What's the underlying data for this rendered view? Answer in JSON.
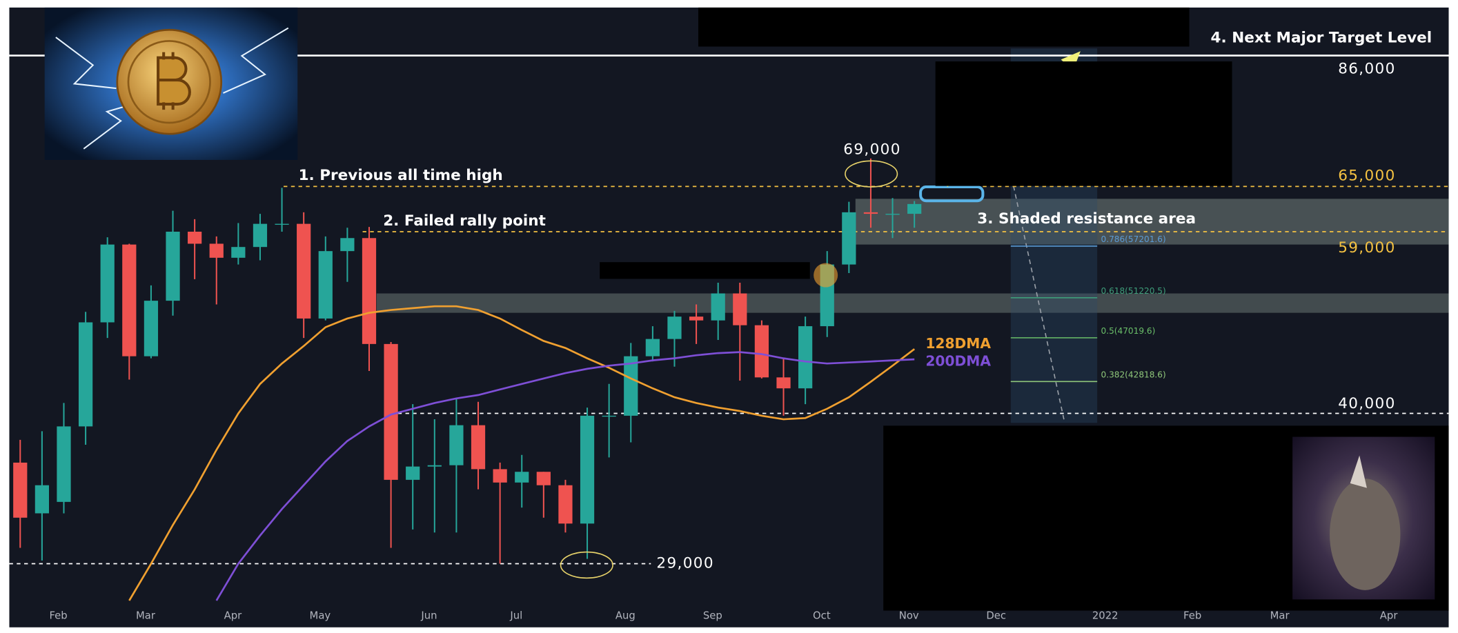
{
  "chart_data": {
    "type": "candlestick",
    "log_scale": true,
    "ylim": [
      26600,
      95300
    ],
    "yticks": [
      {
        "value": 86000,
        "label": "86,000",
        "color": "#ffffff"
      },
      {
        "value": 65000,
        "label": "65,000",
        "color": "#f5c242"
      },
      {
        "value": 59000,
        "label": "59,000",
        "color": "#f5c242"
      },
      {
        "value": 40000,
        "label": "40,000",
        "color": "#ffffff"
      },
      {
        "value": 29000,
        "label": "29,000",
        "color": "#ffffff"
      }
    ],
    "categories": [
      null,
      null,
      "Feb",
      null,
      null,
      null,
      "Mar",
      null,
      null,
      null,
      "Apr",
      null,
      null,
      null,
      "May",
      null,
      null,
      null,
      null,
      "Jun",
      null,
      null,
      null,
      "Jul",
      null,
      null,
      null,
      null,
      "Aug",
      null,
      null,
      null,
      "Sep",
      null,
      null,
      null,
      null,
      "Oct",
      null,
      null,
      null,
      "Nov",
      null,
      null,
      null,
      "Dec",
      null,
      null,
      null,
      null,
      "2022",
      null,
      null,
      null,
      "Feb",
      null,
      null,
      null,
      "Mar",
      null,
      null,
      null,
      null,
      "Apr",
      null,
      null
    ],
    "up_color": "#26a69a",
    "down_color": "#ef5350",
    "open": [
      36000,
      32300,
      33100,
      38900,
      48600,
      57400,
      45200,
      50900,
      59000,
      57500,
      55800,
      57100,
      60000,
      60000,
      49000,
      56600,
      58200,
      46400,
      34700,
      35700,
      35800,
      39000,
      35500,
      34500,
      35300,
      34300,
      31600,
      39800,
      39800,
      45200,
      46900,
      49200,
      48800,
      51700,
      48300,
      43200,
      42200,
      48200,
      55000,
      61500,
      61300,
      61300,
      null,
      null,
      null,
      null,
      null,
      null,
      null,
      null,
      null,
      null,
      null,
      null,
      null,
      null,
      null,
      null,
      null,
      null,
      null,
      null,
      null,
      null,
      null,
      null
    ],
    "high": [
      37800,
      38500,
      40900,
      49700,
      58300,
      57500,
      52600,
      61700,
      60600,
      58400,
      60100,
      61300,
      64800,
      61500,
      58400,
      59500,
      59600,
      46600,
      40800,
      39500,
      41300,
      41000,
      36000,
      36600,
      35300,
      34700,
      40500,
      42600,
      46500,
      48200,
      49800,
      50500,
      52900,
      52900,
      48800,
      45000,
      49200,
      56600,
      62900,
      69000,
      63400,
      63000,
      null,
      null,
      null,
      null,
      null,
      null,
      null,
      null,
      null,
      null,
      null,
      null,
      null,
      null,
      null,
      null,
      null,
      null,
      null,
      null,
      null,
      null,
      null,
      null
    ],
    "low": [
      30000,
      29200,
      32300,
      37400,
      47000,
      43000,
      45000,
      49300,
      53300,
      50500,
      55000,
      55500,
      59000,
      47000,
      48800,
      53000,
      43800,
      30000,
      31200,
      31000,
      31000,
      34000,
      29000,
      32700,
      32000,
      31000,
      29300,
      36400,
      37600,
      44700,
      44200,
      46400,
      46800,
      42900,
      43100,
      39800,
      40800,
      47100,
      54000,
      59500,
      58200,
      59500,
      null,
      null,
      null,
      null,
      null,
      null,
      null,
      null,
      null,
      null,
      null,
      null,
      null,
      null,
      null,
      null,
      null,
      null,
      null,
      null,
      null,
      null,
      null,
      null
    ],
    "close": [
      32000,
      34300,
      38900,
      48600,
      57400,
      45200,
      50900,
      59000,
      57500,
      55800,
      57100,
      60000,
      60000,
      49000,
      56600,
      58200,
      46400,
      34700,
      35700,
      35800,
      39000,
      35500,
      34500,
      35300,
      34300,
      31600,
      39800,
      39800,
      45200,
      46900,
      49200,
      48800,
      51700,
      48300,
      43200,
      42200,
      48200,
      55000,
      61500,
      61300,
      61300,
      62600,
      null,
      null,
      null,
      null,
      null,
      null,
      null,
      null,
      null,
      null,
      null,
      null,
      null,
      null,
      null,
      null,
      null,
      null,
      null,
      null,
      null,
      null,
      null,
      null
    ],
    "series": [
      {
        "name": "128DMA",
        "color": "#f0a030",
        "values": [
          null,
          null,
          null,
          null,
          null,
          26800,
          29000,
          31500,
          34000,
          37000,
          40000,
          42600,
          44500,
          46200,
          48100,
          49000,
          49600,
          49900,
          50100,
          50300,
          50300,
          49900,
          49000,
          47800,
          46700,
          46000,
          45000,
          44100,
          43100,
          42200,
          41400,
          40900,
          40500,
          40200,
          39800,
          39500,
          39600,
          40400,
          41400,
          42800,
          44300,
          45900,
          null,
          null,
          null,
          null,
          null,
          null,
          null,
          null,
          null,
          null,
          null,
          null,
          null,
          null,
          null,
          null,
          null,
          null,
          null,
          null,
          null,
          null,
          null,
          null
        ]
      },
      {
        "name": "200DMA",
        "color": "#7e4fd6",
        "values": [
          null,
          null,
          null,
          null,
          null,
          null,
          null,
          null,
          null,
          26800,
          29000,
          30800,
          32600,
          34300,
          36100,
          37700,
          38900,
          39900,
          40400,
          40900,
          41300,
          41600,
          42100,
          42600,
          43100,
          43600,
          44000,
          44300,
          44500,
          44800,
          45000,
          45300,
          45500,
          45600,
          45400,
          45000,
          44700,
          44500,
          44600,
          44700,
          44800,
          44900,
          null,
          null,
          null,
          null,
          null,
          null,
          null,
          null,
          null,
          null,
          null,
          null,
          null,
          null,
          null,
          null,
          null,
          null,
          null,
          null,
          null,
          null,
          null,
          null
        ]
      }
    ],
    "peak": {
      "value": 69000,
      "label": "69,000"
    },
    "fib_levels": [
      {
        "value": 57201.6,
        "label": "0.786(57201.6)",
        "color": "#5b9bd5"
      },
      {
        "value": 51220.5,
        "label": "0.618(51220.5)",
        "color": "#3e9e7a"
      },
      {
        "value": 47019.6,
        "label": "0.5(47019.6)",
        "color": "#6abf69"
      },
      {
        "value": 42818.6,
        "label": "0.382(42818.6)",
        "color": "#8fc77a"
      }
    ],
    "resistance_zones": [
      {
        "from": 57400,
        "to": 63300
      },
      {
        "from": 49600,
        "to": 51700
      }
    ],
    "annotations": {
      "previous_ath": "1. Previous all time high",
      "failed_rally": "2. Failed rally point",
      "resistance": "3. Shaded resistance area",
      "target": "4. Next Major Target Level"
    }
  }
}
